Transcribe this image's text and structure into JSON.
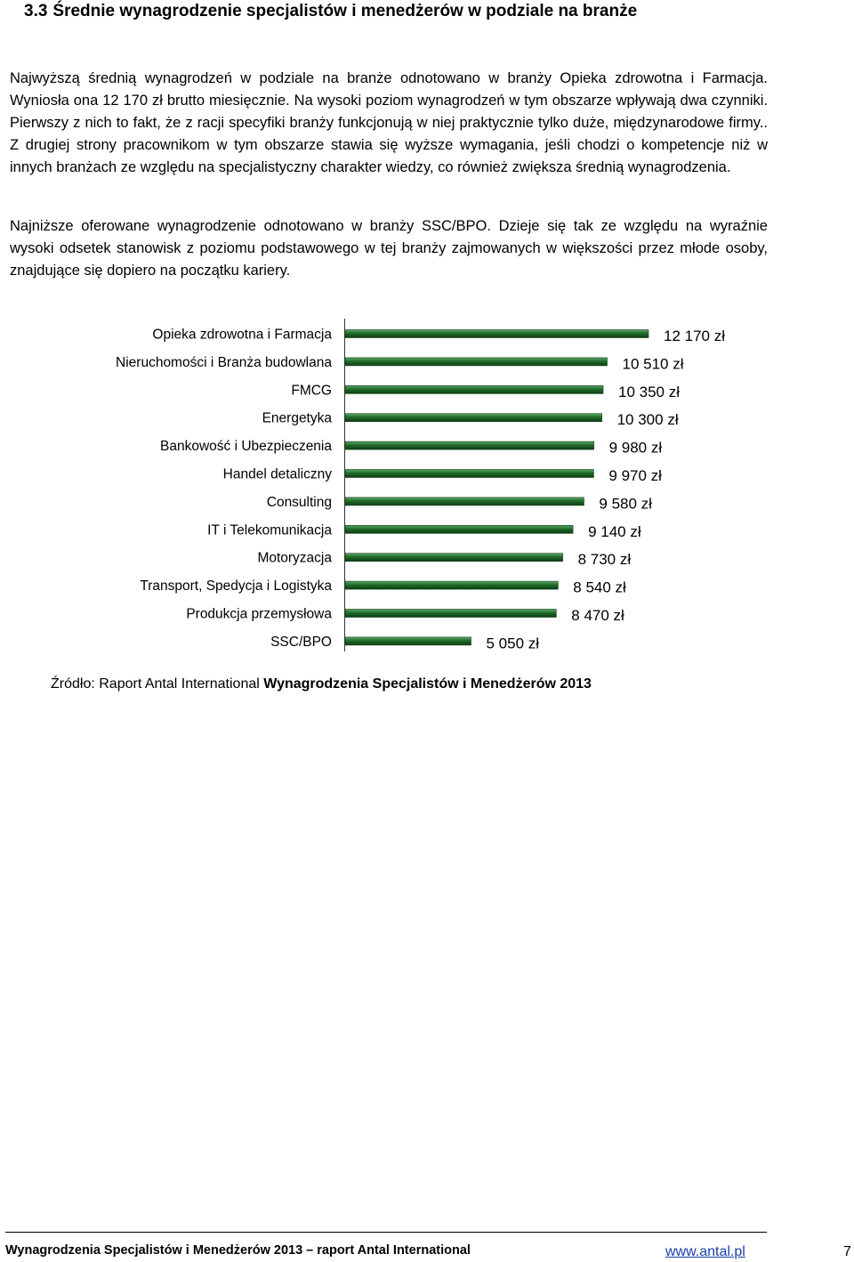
{
  "section": {
    "number": "3.3",
    "title": "Średnie wynagrodzenie specjalistów i menedżerów w podziale na branże"
  },
  "paragraphs": [
    "Najwyższą średnią wynagrodzeń w podziale na branże odnotowano w branży Opieka zdrowotna i Farmacja. Wyniosła ona 12 170 zł brutto miesięcznie. Na wysoki poziom wynagrodzeń w tym obszarze wpływają dwa czynniki. Pierwszy z nich to fakt, że z racji specyfiki branży funkcjonują w niej praktycznie tylko duże, międzynarodowe firmy.. Z drugiej strony pracownikom w tym obszarze stawia się wyższe wymagania, jeśli chodzi o kompetencje niż w innych branżach ze względu na specjalistyczny charakter wiedzy, co również zwiększa średnią wynagrodzenia.",
    "Najniższe oferowane wynagrodzenie odnotowano w branży SSC/BPO. Dzieje się tak ze względu na wyraźnie wysoki odsetek stanowisk z poziomu podstawowego w tej branży zajmowanych w większości przez młode osoby, znajdujące się dopiero na początku kariery."
  ],
  "chart_data": {
    "type": "bar",
    "orientation": "horizontal",
    "categories": [
      "Opieka zdrowotna i Farmacja",
      "Nieruchomości i Branża budowlana",
      "FMCG",
      "Energetyka",
      "Bankowość i Ubezpieczenia",
      "Handel detaliczny",
      "Consulting",
      "IT  i Telekomunikacja",
      "Motoryzacja",
      "Transport, Spedycja i Logistyka",
      "Produkcja przemysłowa",
      "SSC/BPO"
    ],
    "values": [
      12170,
      10510,
      10350,
      10300,
      9980,
      9970,
      9580,
      9140,
      8730,
      8540,
      8470,
      5050
    ],
    "data_labels": [
      "12 170 zł",
      "10 510 zł",
      "10 350 zł",
      "10 300 zł",
      "9 980 zł",
      "9 970 zł",
      "9 580 zł",
      "9 140 zł",
      "8 730 zł",
      "8 540 zł",
      "8 470 zł",
      "5 050 zł"
    ],
    "xlim": [
      0,
      12170
    ],
    "grid": false,
    "legend": "none",
    "bar_color": "#1f6b2a",
    "bar_edge_color": "#0f3d15"
  },
  "source": {
    "prefix": "Źródło: Raport Antal International ",
    "bold": "Wynagrodzenia Specjalistów i Menedżerów 2013"
  },
  "footer": {
    "left": "Wynagrodzenia Specjalistów i Menedżerów 2013 – raport Antal International",
    "link": "www.antal.pl",
    "page": "7"
  }
}
